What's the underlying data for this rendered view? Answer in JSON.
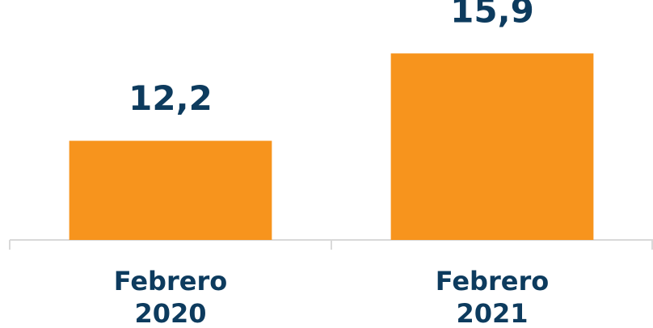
{
  "chart_data": {
    "type": "bar",
    "categories": [
      "Febrero 2020",
      "Febrero 2021"
    ],
    "values": [
      12.2,
      15.9
    ],
    "value_labels": [
      "12,2",
      "15,9"
    ],
    "color": "#f7941d",
    "ylim": [
      8,
      17
    ]
  }
}
